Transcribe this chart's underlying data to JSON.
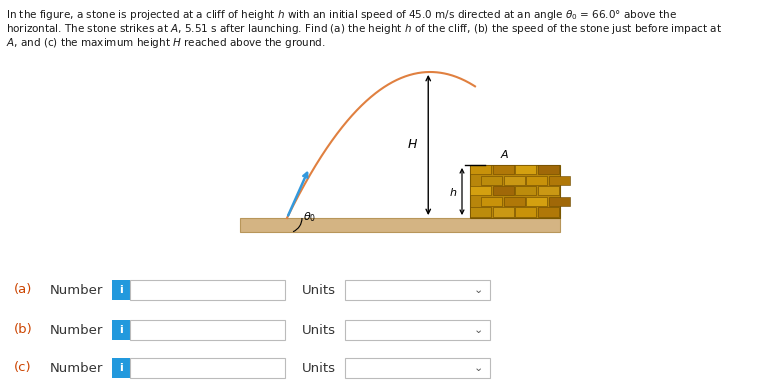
{
  "bg_color": "#ffffff",
  "ground_color": "#d4b483",
  "ground_edge_color": "#b8965a",
  "trajectory_color": "#e08040",
  "launch_arrow_color": "#3399dd",
  "button_color": "#2299dd",
  "rows": [
    {
      "label": "(a)",
      "text": "Number",
      "unit_label": "Units"
    },
    {
      "label": "(b)",
      "text": "Number",
      "unit_label": "Units"
    },
    {
      "label": "(c)",
      "text": "Number",
      "unit_label": "Units"
    }
  ],
  "figsize": [
    7.62,
    3.9
  ],
  "dpi": 100,
  "title_lines": [
    "In the figure, a stone is projected at a cliff of height $h$ with an initial speed of 45.0 m/s directed at an angle $\\theta_0$ = 66.0° above the",
    "horizontal. The stone strikes at $A$, 5.51 s after launching. Find (a) the height $h$ of the cliff, (b) the speed of the stone just before impact at",
    "$A$, and (c) the maximum height $H$ reached above the ground."
  ]
}
